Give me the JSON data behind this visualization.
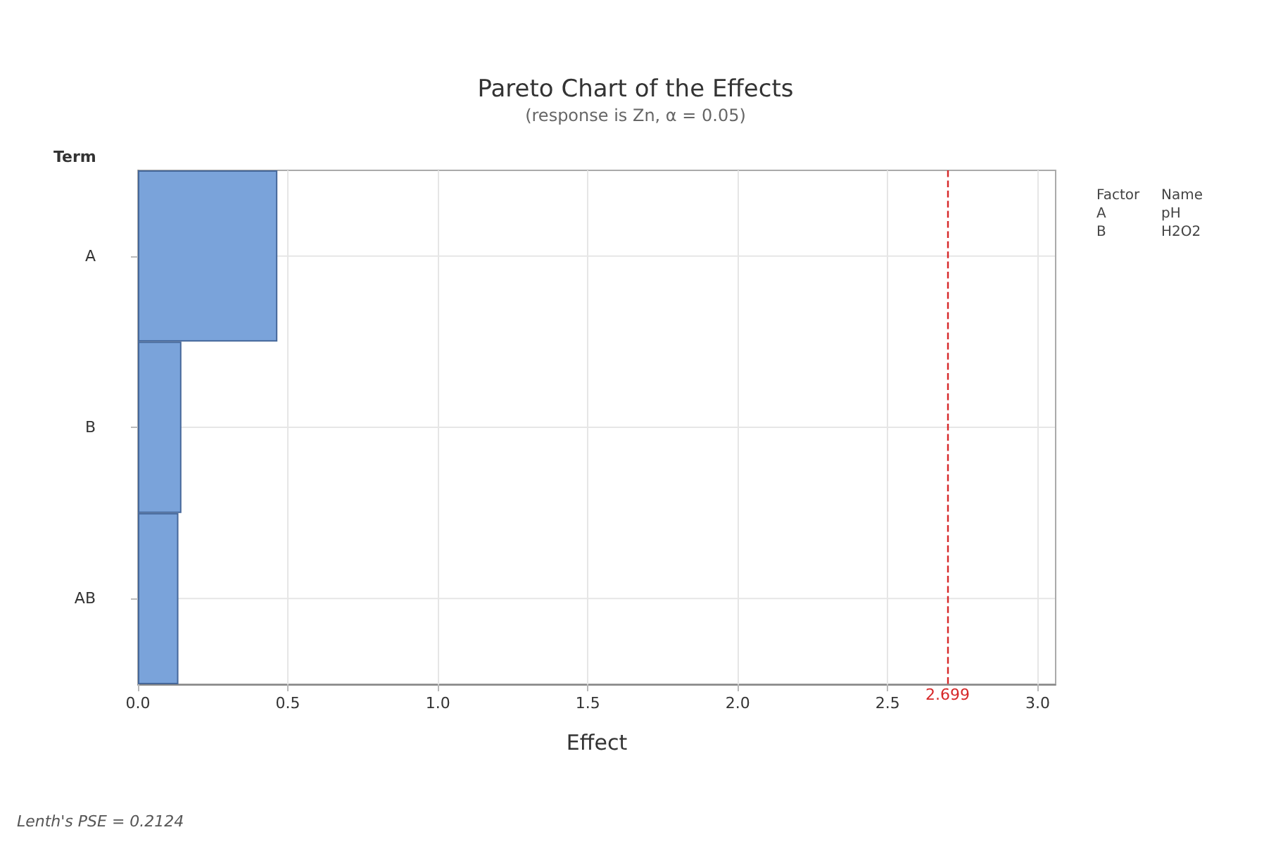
{
  "chart_data": {
    "type": "bar",
    "orientation": "horizontal",
    "title": "Pareto Chart of the Effects",
    "subtitle": "(response is Zn, α = 0.05)",
    "xlabel": "Effect",
    "ylabel": "Term",
    "categories": [
      "A",
      "B",
      "AB"
    ],
    "values": [
      0.465,
      0.145,
      0.135
    ],
    "color": "#7aa3da",
    "xlim": [
      0,
      3.06
    ],
    "xticks": [
      {
        "value": 0,
        "label": "0.0"
      },
      0.5,
      {
        "value": 1,
        "label": "1.0"
      },
      1.5,
      {
        "value": 2,
        "label": "2.0"
      },
      2.5,
      {
        "value": 3,
        "label": "3.0"
      }
    ],
    "ref_lines": [
      {
        "axis": "x",
        "value": 2.699,
        "label": "2.699",
        "color": "#d62728",
        "line_style": "dashed"
      }
    ],
    "grid": true,
    "annotations": [
      "Lenth's PSE = 0.2124",
      "Factor",
      "Name",
      "A",
      "pH",
      "B",
      "H2O2"
    ]
  }
}
